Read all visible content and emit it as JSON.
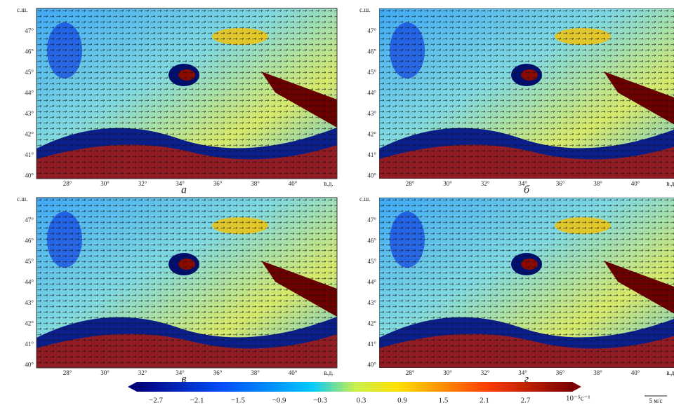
{
  "panels": [
    {
      "label": "а",
      "lat_label": "с.ш.",
      "lon_label": "в.д.",
      "yticks": [
        "47°",
        "46°",
        "45°",
        "44°",
        "43°",
        "42°",
        "41°",
        "40°"
      ],
      "xticks": [
        "28°",
        "30°",
        "32°",
        "34°",
        "36°",
        "38°",
        "40°"
      ]
    },
    {
      "label": "б",
      "lat_label": "с.ш.",
      "lon_label": "в.д.",
      "yticks": [
        "47°",
        "46°",
        "45°",
        "44°",
        "43°",
        "42°",
        "41°",
        "40°"
      ],
      "xticks": [
        "28°",
        "30°",
        "32°",
        "34°",
        "36°",
        "38°",
        "40°"
      ]
    },
    {
      "label": "в",
      "lat_label": "с.ш.",
      "lon_label": "в.д.",
      "yticks": [
        "47°",
        "46°",
        "45°",
        "44°",
        "43°",
        "42°",
        "41°",
        "40°"
      ],
      "xticks": [
        "28°",
        "30°",
        "32°",
        "34°",
        "36°",
        "38°",
        "40°"
      ]
    },
    {
      "label": "г",
      "lat_label": "с.ш.",
      "lon_label": "в.д.",
      "yticks": [
        "47°",
        "46°",
        "45°",
        "44°",
        "43°",
        "42°",
        "41°",
        "40°"
      ],
      "xticks": [
        "28°",
        "30°",
        "32°",
        "34°",
        "36°",
        "38°",
        "40°"
      ]
    }
  ],
  "colorbar": {
    "ticks": [
      "−2.7",
      "−2.1",
      "−1.5",
      "−0.9",
      "−0.3",
      "0.3",
      "0.9",
      "1.5",
      "2.1",
      "2.7"
    ],
    "unit": "10⁻⁵с⁻¹"
  },
  "scale": {
    "label": "5 м/с"
  }
}
